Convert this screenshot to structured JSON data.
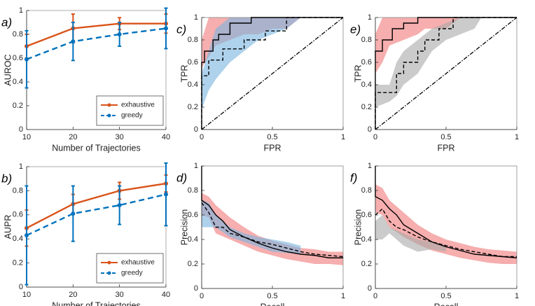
{
  "chart_data": [
    {
      "type": "line",
      "label": "a)",
      "xlabel": "Number of Trajectories",
      "ylabel": "AUROC",
      "x": [
        10,
        20,
        30,
        40
      ],
      "xlim": [
        10,
        40
      ],
      "xticks": [
        10,
        20,
        30,
        40
      ],
      "ylim": [
        0,
        1
      ],
      "yticks": [
        0,
        0.2,
        0.4,
        0.6,
        0.8,
        1
      ],
      "legend": "lower right",
      "series": [
        {
          "name": "exhaustive",
          "color": "#d95319",
          "style": "solid",
          "values": [
            0.7,
            0.85,
            0.89,
            0.89
          ],
          "errors": [
            0.1,
            0.12,
            0.05,
            0.08
          ]
        },
        {
          "name": "greedy",
          "color": "#0072bd",
          "style": "dashed",
          "values": [
            0.59,
            0.74,
            0.8,
            0.85
          ],
          "errors": [
            0.24,
            0.16,
            0.1,
            0.17
          ]
        }
      ]
    },
    {
      "type": "line",
      "label": "b)",
      "xlabel": "Number of Trajectories",
      "ylabel": "AUPR",
      "x": [
        10,
        20,
        30,
        40
      ],
      "xlim": [
        10,
        40
      ],
      "xticks": [
        10,
        20,
        30,
        40
      ],
      "ylim": [
        0,
        1
      ],
      "yticks": [
        0,
        0.2,
        0.4,
        0.6,
        0.8,
        1
      ],
      "legend": "lower right",
      "series": [
        {
          "name": "exhaustive",
          "color": "#d95319",
          "style": "solid",
          "values": [
            0.49,
            0.69,
            0.8,
            0.86
          ],
          "errors": [
            0.15,
            0.08,
            0.07,
            0.07
          ]
        },
        {
          "name": "greedy",
          "color": "#0072bd",
          "style": "dashed",
          "values": [
            0.43,
            0.61,
            0.68,
            0.77
          ],
          "errors": [
            0.41,
            0.23,
            0.16,
            0.26
          ]
        }
      ]
    },
    {
      "type": "line",
      "label": "c)",
      "xlabel": "FPR",
      "ylabel": "TPR",
      "xlim": [
        0,
        1
      ],
      "xticks": [
        0,
        0.5,
        1
      ],
      "ylim": [
        0,
        1
      ],
      "yticks": [
        0,
        0.2,
        0.4,
        0.6,
        0.8,
        1
      ],
      "reference": "diagonal",
      "bands": [
        {
          "color": "#f07878",
          "x": [
            0,
            0.05,
            0.1,
            0.2,
            0.3,
            0.4,
            0.5,
            0.6,
            0.7
          ],
          "lower": [
            0.55,
            0.65,
            0.75,
            0.8,
            0.85,
            0.85,
            0.9,
            0.9,
            1
          ],
          "upper": [
            0.8,
            1,
            1,
            1,
            1,
            1,
            1,
            1,
            1
          ]
        },
        {
          "color": "#78b4e0",
          "x": [
            0,
            0.05,
            0.1,
            0.2,
            0.3,
            0.4,
            0.5,
            0.6,
            0.7
          ],
          "lower": [
            0.18,
            0.35,
            0.45,
            0.6,
            0.7,
            0.8,
            0.85,
            0.9,
            1
          ],
          "upper": [
            0.5,
            0.7,
            0.9,
            1,
            1,
            1,
            1,
            1,
            1
          ]
        }
      ],
      "series": [
        {
          "color": "#000000",
          "style": "solid",
          "x": [
            0,
            0,
            0.02,
            0.02,
            0.08,
            0.08,
            0.12,
            0.12,
            0.2,
            0.2,
            0.35,
            0.35,
            1
          ],
          "values": [
            0,
            0.6,
            0.6,
            0.7,
            0.7,
            0.8,
            0.8,
            0.85,
            0.85,
            0.95,
            0.95,
            1,
            1
          ]
        },
        {
          "color": "#000000",
          "style": "dashed",
          "x": [
            0,
            0,
            0.05,
            0.05,
            0.15,
            0.15,
            0.3,
            0.3,
            0.45,
            0.45,
            0.6,
            0.6,
            1
          ],
          "values": [
            0,
            0.48,
            0.48,
            0.62,
            0.62,
            0.72,
            0.72,
            0.8,
            0.8,
            0.88,
            0.88,
            1,
            1
          ]
        }
      ]
    },
    {
      "type": "line",
      "label": "d)",
      "xlabel": "Recall",
      "ylabel": "Precision",
      "xlim": [
        0,
        1
      ],
      "xticks": [
        0,
        0.5,
        1
      ],
      "ylim": [
        0,
        1
      ],
      "yticks": [
        0,
        0.2,
        0.4,
        0.6,
        0.8,
        1
      ],
      "bands": [
        {
          "color": "#f07878",
          "x": [
            0,
            0.05,
            0.1,
            0.2,
            0.3,
            0.4,
            0.5,
            0.6,
            0.7,
            0.8,
            0.9,
            1
          ],
          "lower": [
            0.6,
            0.58,
            0.45,
            0.4,
            0.35,
            0.3,
            0.27,
            0.24,
            0.22,
            0.2,
            0.2,
            0.19
          ],
          "upper": [
            0.78,
            0.75,
            0.68,
            0.58,
            0.5,
            0.43,
            0.39,
            0.36,
            0.33,
            0.32,
            0.3,
            0.3
          ]
        },
        {
          "color": "#78b4e0",
          "x": [
            0,
            0.05,
            0.1,
            0.2,
            0.3,
            0.4,
            0.5,
            0.6,
            0.7
          ],
          "lower": [
            0.5,
            0.5,
            0.5,
            0.42,
            0.38,
            0.34,
            0.3,
            0.29,
            0.28
          ],
          "upper": [
            0.72,
            0.7,
            0.6,
            0.5,
            0.45,
            0.42,
            0.4,
            0.38,
            0.35
          ]
        }
      ],
      "series": [
        {
          "color": "#000000",
          "style": "solid",
          "x": [
            0,
            0,
            0.05,
            0.1,
            0.15,
            0.2,
            0.3,
            0.4,
            0.5,
            0.6,
            0.7,
            0.8,
            0.9,
            1
          ],
          "values": [
            1,
            0.72,
            0.68,
            0.6,
            0.55,
            0.48,
            0.42,
            0.37,
            0.33,
            0.3,
            0.28,
            0.27,
            0.25,
            0.25
          ]
        },
        {
          "color": "#000000",
          "style": "dashed",
          "x": [
            0,
            0.05,
            0.1,
            0.15,
            0.2,
            0.3,
            0.4,
            0.5,
            0.6,
            0.7,
            0.8,
            0.9,
            1
          ],
          "values": [
            0.7,
            0.62,
            0.5,
            0.5,
            0.45,
            0.42,
            0.38,
            0.36,
            0.33,
            0.3,
            0.28,
            0.27,
            0.26
          ]
        }
      ]
    },
    {
      "type": "line",
      "label": "e)",
      "xlabel": "FPR",
      "ylabel": "TPR",
      "xlim": [
        0,
        1
      ],
      "xticks": [
        0,
        0.5,
        1
      ],
      "ylim": [
        0,
        1
      ],
      "yticks": [
        0,
        0.2,
        0.4,
        0.6,
        0.8,
        1
      ],
      "reference": "diagonal",
      "bands": [
        {
          "color": "#f07878",
          "x": [
            0,
            0.05,
            0.1,
            0.2,
            0.3,
            0.35,
            0.5,
            0.6
          ],
          "lower": [
            0.5,
            0.6,
            0.75,
            0.8,
            0.85,
            0.9,
            0.9,
            1
          ],
          "upper": [
            0.85,
            1,
            1,
            1,
            1,
            1,
            1,
            1
          ]
        },
        {
          "color": "#a8a8a8",
          "x": [
            0,
            0.1,
            0.15,
            0.2,
            0.3,
            0.4,
            0.5,
            0.6,
            0.7,
            0.75
          ],
          "lower": [
            0.2,
            0.25,
            0.3,
            0.4,
            0.5,
            0.7,
            0.8,
            0.85,
            0.9,
            1
          ],
          "upper": [
            0.4,
            0.4,
            0.6,
            0.7,
            0.8,
            0.9,
            0.95,
            1,
            1,
            1
          ]
        }
      ],
      "series": [
        {
          "color": "#000000",
          "style": "solid",
          "x": [
            0,
            0,
            0.05,
            0.05,
            0.12,
            0.12,
            0.2,
            0.2,
            0.3,
            0.3,
            1
          ],
          "values": [
            0,
            0.7,
            0.7,
            0.8,
            0.8,
            0.9,
            0.9,
            0.95,
            0.95,
            1,
            1
          ]
        },
        {
          "color": "#000000",
          "style": "dashed",
          "x": [
            0,
            0,
            0.15,
            0.15,
            0.2,
            0.2,
            0.3,
            0.3,
            0.35,
            0.35,
            0.45,
            0.45,
            0.55,
            0.55,
            1
          ],
          "values": [
            0,
            0.33,
            0.33,
            0.5,
            0.5,
            0.6,
            0.6,
            0.7,
            0.7,
            0.8,
            0.8,
            0.9,
            0.9,
            1,
            1
          ]
        }
      ]
    },
    {
      "type": "line",
      "label": "f)",
      "xlabel": "Recall",
      "ylabel": "Precision",
      "xlim": [
        0,
        1
      ],
      "xticks": [
        0,
        0.5,
        1
      ],
      "ylim": [
        0,
        1
      ],
      "yticks": [
        0,
        0.2,
        0.4,
        0.6,
        0.8,
        1
      ],
      "bands": [
        {
          "color": "#f07878",
          "x": [
            0,
            0.05,
            0.1,
            0.2,
            0.3,
            0.4,
            0.5,
            0.6,
            0.7,
            0.8,
            0.9,
            1
          ],
          "lower": [
            0.62,
            0.6,
            0.5,
            0.42,
            0.36,
            0.31,
            0.28,
            0.25,
            0.23,
            0.21,
            0.2,
            0.2
          ],
          "upper": [
            0.85,
            0.82,
            0.72,
            0.62,
            0.52,
            0.45,
            0.4,
            0.37,
            0.34,
            0.32,
            0.31,
            0.3
          ]
        },
        {
          "color": "#a8a8a8",
          "x": [
            0,
            0.05,
            0.1,
            0.2,
            0.3,
            0.4,
            0.5
          ],
          "lower": [
            0.4,
            0.4,
            0.45,
            0.35,
            0.3,
            0.32,
            0.3
          ],
          "upper": [
            0.55,
            0.6,
            0.5,
            0.45,
            0.4,
            0.38,
            0.35
          ]
        }
      ],
      "series": [
        {
          "color": "#000000",
          "style": "solid",
          "x": [
            0,
            0,
            0.05,
            0.1,
            0.15,
            0.2,
            0.3,
            0.4,
            0.5,
            0.6,
            0.7,
            0.8,
            0.9,
            1
          ],
          "values": [
            1,
            0.75,
            0.72,
            0.65,
            0.6,
            0.52,
            0.45,
            0.38,
            0.34,
            0.31,
            0.28,
            0.27,
            0.26,
            0.25
          ]
        },
        {
          "color": "#000000",
          "style": "dashed",
          "x": [
            0,
            0.05,
            0.1,
            0.15,
            0.2,
            0.3,
            0.4,
            0.5,
            0.6,
            0.7,
            0.8,
            0.9,
            1
          ],
          "values": [
            0.6,
            0.65,
            0.55,
            0.5,
            0.48,
            0.42,
            0.38,
            0.35,
            0.32,
            0.3,
            0.28,
            0.26,
            0.26
          ]
        }
      ]
    }
  ]
}
